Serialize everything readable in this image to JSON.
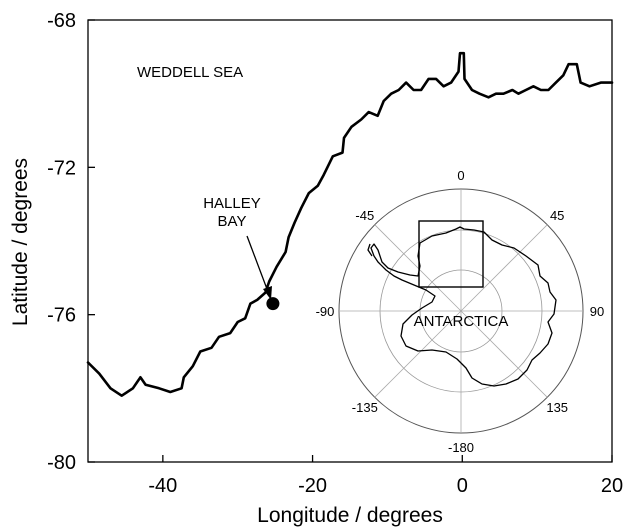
{
  "figure": {
    "x_axis": {
      "title": "Longitude / degrees",
      "range": [
        -50,
        20
      ],
      "ticks": [
        {
          "value": -40,
          "label": "-40"
        },
        {
          "value": -20,
          "label": "-20"
        },
        {
          "value": 0,
          "label": "0"
        },
        {
          "value": 20,
          "label": "20"
        }
      ]
    },
    "y_axis": {
      "title": "Latitude / degrees",
      "range": [
        -80,
        -68
      ],
      "ticks": [
        {
          "value": -68,
          "label": "-68"
        },
        {
          "value": -72,
          "label": "-72"
        },
        {
          "value": -76,
          "label": "-76"
        },
        {
          "value": -80,
          "label": "-80"
        }
      ]
    },
    "labels": {
      "sea": "WEDDELL SEA",
      "station_line1": "HALLEY",
      "station_line2": "BAY"
    },
    "station": {
      "lon": -25.3,
      "lat": -75.7
    },
    "coastline": [
      [
        -50,
        -77.3
      ],
      [
        -48.5,
        -77.6
      ],
      [
        -47,
        -78
      ],
      [
        -45.5,
        -78.2
      ],
      [
        -44,
        -78
      ],
      [
        -43,
        -77.7
      ],
      [
        -42.3,
        -77.9
      ],
      [
        -40.5,
        -78
      ],
      [
        -39,
        -78.1
      ],
      [
        -37.5,
        -78
      ],
      [
        -37.2,
        -77.7
      ],
      [
        -36,
        -77.4
      ],
      [
        -35,
        -77
      ],
      [
        -33.5,
        -76.9
      ],
      [
        -32.5,
        -76.6
      ],
      [
        -31,
        -76.5
      ],
      [
        -30,
        -76.2
      ],
      [
        -29,
        -76.1
      ],
      [
        -28.3,
        -75.7
      ],
      [
        -27.4,
        -75.6
      ],
      [
        -26.3,
        -75.4
      ],
      [
        -25.8,
        -75.1
      ],
      [
        -24.8,
        -74.7
      ],
      [
        -23.6,
        -74.3
      ],
      [
        -23.2,
        -73.9
      ],
      [
        -22.4,
        -73.5
      ],
      [
        -21.5,
        -73.1
      ],
      [
        -20.5,
        -72.7
      ],
      [
        -19.3,
        -72.5
      ],
      [
        -18.5,
        -72.2
      ],
      [
        -17.3,
        -71.7
      ],
      [
        -16,
        -71.6
      ],
      [
        -15.8,
        -71.2
      ],
      [
        -14.8,
        -70.9
      ],
      [
        -13.5,
        -70.7
      ],
      [
        -12.5,
        -70.5
      ],
      [
        -11.3,
        -70.6
      ],
      [
        -10.5,
        -70.2
      ],
      [
        -9.5,
        -70
      ],
      [
        -8.5,
        -69.9
      ],
      [
        -7.5,
        -69.7
      ],
      [
        -6.5,
        -69.9
      ],
      [
        -5.5,
        -69.9
      ],
      [
        -4.5,
        -69.6
      ],
      [
        -3.5,
        -69.6
      ],
      [
        -2.5,
        -69.8
      ],
      [
        -1.5,
        -69.7
      ],
      [
        -0.5,
        -69.4
      ],
      [
        -0.3,
        -68.9
      ],
      [
        0.2,
        -68.9
      ],
      [
        0.3,
        -69.6
      ],
      [
        1.3,
        -69.9
      ],
      [
        2.3,
        -70
      ],
      [
        3.5,
        -70.1
      ],
      [
        4.5,
        -70
      ],
      [
        5.5,
        -70
      ],
      [
        6.7,
        -69.9
      ],
      [
        7.5,
        -70
      ],
      [
        8.5,
        -69.9
      ],
      [
        9.5,
        -69.8
      ],
      [
        10.5,
        -69.9
      ],
      [
        11.5,
        -69.9
      ],
      [
        12.5,
        -69.7
      ],
      [
        13.5,
        -69.5
      ],
      [
        14.2,
        -69.2
      ],
      [
        15.3,
        -69.2
      ],
      [
        15.8,
        -69.7
      ],
      [
        17,
        -69.8
      ],
      [
        18.5,
        -69.7
      ],
      [
        20,
        -69.7
      ]
    ],
    "inset": {
      "meridian_labels": [
        {
          "value": 0,
          "label": "0"
        },
        {
          "value": 45,
          "label": "45"
        },
        {
          "value": 90,
          "label": "90"
        },
        {
          "value": 135,
          "label": "135"
        },
        {
          "value": -180,
          "label": "-180"
        },
        {
          "value": -135,
          "label": "-135"
        },
        {
          "value": -90,
          "label": "-90"
        },
        {
          "value": -45,
          "label": "-45"
        }
      ],
      "continent_label": "ANTARCTICA"
    }
  }
}
